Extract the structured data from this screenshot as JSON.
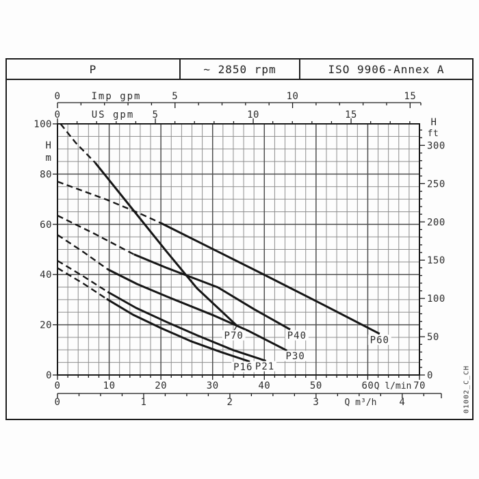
{
  "header": {
    "cells": [
      "P",
      "~ 2850 rpm",
      "ISO 9906-Annex A"
    ]
  },
  "side_note": "01002_C_CH",
  "colors": {
    "ink": "#1a1a1a",
    "curve": "#161616",
    "grid_minor": "#8d8d8d",
    "grid_major": "#4e4e4e",
    "text": "#2b2b2b",
    "bg": "#fdfdfd"
  },
  "chart_data": {
    "type": "line",
    "title": "Pump performance curves H(Q)",
    "x_primary_unit": "l/min",
    "y_primary_unit": "m",
    "axes": {
      "imp_gpm": {
        "title": "Imp gpm",
        "major_ticks": [
          0,
          5,
          10,
          15
        ],
        "minor_step": 1,
        "minor_max": 15,
        "lmin_per_unit": 4.546
      },
      "us_gpm": {
        "title": "US gpm",
        "major_ticks": [
          0,
          5,
          10,
          15
        ],
        "minor_step": 1,
        "minor_max": 18,
        "lmin_per_unit": 3.785
      },
      "q_lmin": {
        "title": "Q l/min",
        "major_ticks": [
          0,
          10,
          20,
          30,
          40,
          50,
          60,
          70
        ],
        "minor_step": 2,
        "range": [
          0,
          70
        ]
      },
      "q_m3h": {
        "title": "Q m³/h",
        "major_ticks": [
          0,
          1,
          2,
          3,
          4
        ],
        "minor_step": 0.25,
        "minor_max": 4.25,
        "lmin_per_unit": 16.667
      },
      "h_m": {
        "title_line1": "H",
        "title_line2": "m",
        "major_ticks": [
          0,
          20,
          40,
          60,
          80,
          100
        ],
        "minor_step": 5,
        "range": [
          0,
          100
        ]
      },
      "h_ft": {
        "title_line1": "H",
        "title_line2": "ft",
        "major_ticks": [
          0,
          50,
          100,
          150,
          200,
          250,
          300
        ],
        "minor_step": 10,
        "minor_max": 320,
        "m_per_unit": 0.3048
      }
    },
    "grid": {
      "x_minor_lmin": 2,
      "x_major_lmin": 10,
      "y_minor_m": 5,
      "y_major_m": 20
    },
    "series": [
      {
        "name": "P70",
        "label": "P70",
        "label_at": [
          34.1,
          15.4
        ],
        "dashed": [
          [
            0.6,
            100
          ],
          [
            3.5,
            92.5
          ],
          [
            7.3,
            84.5
          ]
        ],
        "solid": [
          [
            7.3,
            84.5
          ],
          [
            14.6,
            65.8
          ],
          [
            21,
            49.4
          ],
          [
            27,
            34.5
          ],
          [
            34.6,
            19.8
          ]
        ]
      },
      {
        "name": "P60",
        "label": "P60",
        "label_at": [
          62.3,
          13.6
        ],
        "dashed": [
          [
            0,
            77
          ],
          [
            9.5,
            69.8
          ],
          [
            15.4,
            64.8
          ],
          [
            20,
            60.5
          ]
        ],
        "solid": [
          [
            20,
            60.5
          ],
          [
            30,
            50.2
          ],
          [
            40,
            39.9
          ],
          [
            51,
            28.4
          ],
          [
            62.3,
            16.4
          ]
        ]
      },
      {
        "name": "P40",
        "label": "P40",
        "label_at": [
          46.3,
          15.4
        ],
        "dashed": [
          [
            0,
            63.5
          ],
          [
            7,
            56.4
          ],
          [
            14.8,
            48
          ]
        ],
        "solid": [
          [
            14.8,
            48
          ],
          [
            21.2,
            42.6
          ],
          [
            31,
            34.9
          ],
          [
            38,
            26.2
          ],
          [
            45,
            18.1
          ]
        ]
      },
      {
        "name": "P30",
        "label": "P30",
        "label_at": [
          46.0,
          7.2
        ],
        "dashed": [
          [
            0,
            55.8
          ],
          [
            5,
            49
          ],
          [
            9.7,
            42.1
          ]
        ],
        "solid": [
          [
            9.7,
            42.1
          ],
          [
            15.4,
            36.2
          ],
          [
            21.2,
            31.2
          ],
          [
            30,
            23.9
          ],
          [
            37,
            17.5
          ],
          [
            44.4,
            9.7
          ]
        ]
      },
      {
        "name": "P21",
        "label": "P21",
        "label_at": [
          40.1,
          3.1
        ],
        "dashed": [
          [
            0,
            45.5
          ],
          [
            5,
            39.3
          ],
          [
            9.7,
            33.1
          ]
        ],
        "solid": [
          [
            9.7,
            33.1
          ],
          [
            15.2,
            26.7
          ],
          [
            21,
            21.2
          ],
          [
            27,
            15.8
          ],
          [
            34,
            9.9
          ],
          [
            40.3,
            5.6
          ]
        ]
      },
      {
        "name": "P16",
        "label": "P16",
        "label_at": [
          35.9,
          2.8
        ],
        "dashed": [
          [
            0,
            42.6
          ],
          [
            5,
            36.4
          ],
          [
            9.5,
            30.3
          ]
        ],
        "solid": [
          [
            9.5,
            30.3
          ],
          [
            14.6,
            24
          ],
          [
            20,
            18.7
          ],
          [
            26,
            13.3
          ],
          [
            31.5,
            9.2
          ],
          [
            37.2,
            5.3
          ]
        ]
      }
    ]
  }
}
